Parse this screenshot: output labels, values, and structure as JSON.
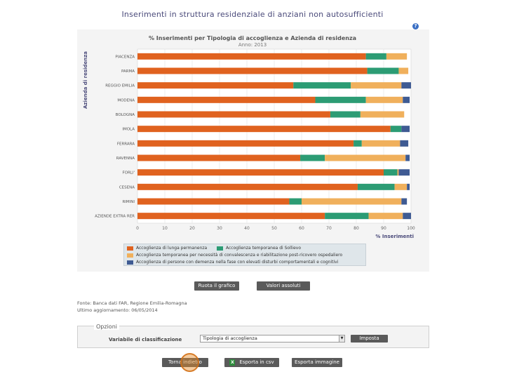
{
  "page": {
    "title": "Inserimenti in struttura residenziale di anziani non autosufficienti",
    "help_icon": "?"
  },
  "chart_data": {
    "type": "bar",
    "orientation": "horizontal-stacked",
    "title": "% Inserimenti per Tipologia di accoglienza e Azienda di residenza",
    "subtitle": "Anno: 2013",
    "ylabel": "Azienda di residenza",
    "xlabel": "% Inserimenti",
    "xlim": [
      0,
      100
    ],
    "x_ticks": [
      "0",
      "10",
      "20",
      "30",
      "40",
      "50",
      "60",
      "70",
      "80",
      "90",
      "100"
    ],
    "categories": [
      "PIACENZA",
      "PARMA",
      "REGGIO EMILIA",
      "MODENA",
      "BOLOGNA",
      "IMOLA",
      "FERRARA",
      "RAVENNA",
      "FORLI'",
      "CESENA",
      "RIMINI",
      "AZIENDE EXTRA RER"
    ],
    "colors": [
      "#e0621f",
      "#2c9c74",
      "#f0b05c",
      "#3f5b93"
    ],
    "series": [
      {
        "name": "Accoglienza di lunga permanenza",
        "values": [
          83.5,
          84,
          57,
          65,
          70.5,
          92.5,
          79,
          59.5,
          90,
          80.5,
          55.5,
          68.5
        ]
      },
      {
        "name": "Accoglienza temporanea di Sollievo",
        "values": [
          7.5,
          11.5,
          21,
          18.5,
          11,
          4,
          3,
          9,
          5,
          13.5,
          4.5,
          16
        ]
      },
      {
        "name": "Accoglienza temporanea per necessità di convalescenza e riabilitazione post-ricovero ospedaliero",
        "values": [
          7.5,
          3.5,
          18.5,
          13.5,
          16,
          0,
          14,
          29.5,
          0.5,
          4.5,
          36.5,
          12.5
        ]
      },
      {
        "name": "Accoglienza di persone con demenza nella fase con elevati disturbi comportamentali e cognitivi",
        "values": [
          0,
          0,
          3.5,
          2.5,
          0,
          3,
          3,
          1.5,
          4,
          1,
          2,
          3
        ]
      }
    ]
  },
  "toolbar": {
    "show_chart": "Ruota il grafico",
    "show_values": "Valori assoluti"
  },
  "footer": {
    "source": "Fonte: Banca dati FAR, Regione Emilia-Romagna",
    "updated": "Ultimo aggiornamento: 06/05/2014"
  },
  "options": {
    "legend": "Opzioni",
    "sort_label": "Variabile di classificazione",
    "sort_value": "Tipologia di accoglienza",
    "apply": "Imposta"
  },
  "actions": {
    "back": "Torna indietro",
    "export_csv": "Esporta in csv",
    "export_image": "Esporta immagine"
  }
}
